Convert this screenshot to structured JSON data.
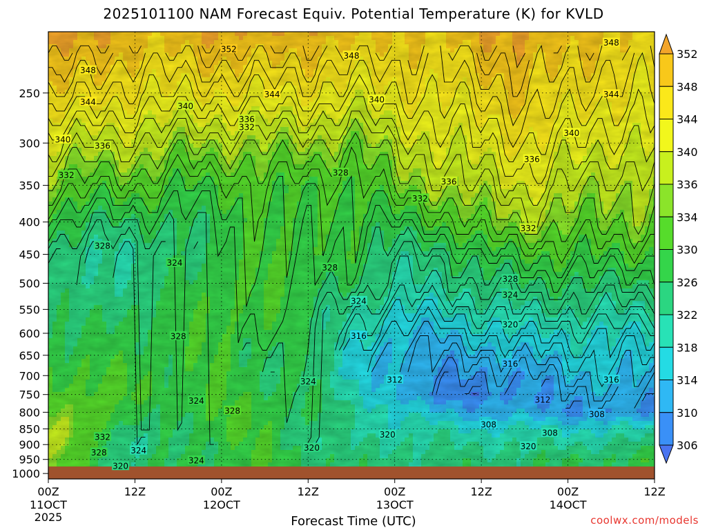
{
  "chart_data": {
    "type": "heatmap",
    "title": "2025101100 NAM Forecast Equiv. Potential Temperature (K) for KVLD",
    "xlabel": "Forecast Time (UTC)",
    "ylabel": "",
    "x_ticks": [
      {
        "hour": 0,
        "label": "00Z",
        "sub": "11OCT",
        "sub2": "2025"
      },
      {
        "hour": 12,
        "label": "12Z",
        "sub": "",
        "sub2": ""
      },
      {
        "hour": 24,
        "label": "00Z",
        "sub": "12OCT",
        "sub2": ""
      },
      {
        "hour": 36,
        "label": "12Z",
        "sub": "",
        "sub2": ""
      },
      {
        "hour": 48,
        "label": "00Z",
        "sub": "13OCT",
        "sub2": ""
      },
      {
        "hour": 60,
        "label": "12Z",
        "sub": "",
        "sub2": ""
      },
      {
        "hour": 72,
        "label": "00Z",
        "sub": "14OCT",
        "sub2": ""
      },
      {
        "hour": 84,
        "label": "12Z",
        "sub": "",
        "sub2": ""
      }
    ],
    "x_range": [
      0,
      84
    ],
    "y_ticks": [
      250,
      300,
      350,
      400,
      450,
      500,
      550,
      600,
      650,
      700,
      750,
      800,
      850,
      900,
      950,
      1000
    ],
    "y_range": [
      200,
      1020
    ],
    "y_scale": "log",
    "grid": true,
    "colorbar": {
      "labels": [
        352,
        348,
        344,
        340,
        336,
        334,
        330,
        326,
        322,
        318,
        314,
        310,
        306
      ],
      "colors": [
        "#f3a52a",
        "#f8c81a",
        "#fbe81a",
        "#f2f71c",
        "#c8f01e",
        "#8be42a",
        "#56dc2b",
        "#34d54a",
        "#2bd681",
        "#28e2b6",
        "#24dbe4",
        "#2fb8f4",
        "#3a90f7",
        "#4a74f0"
      ]
    },
    "surface_color": "#a0522d",
    "profiles": [
      {
        "hour": 0,
        "theta": [
          356,
          348,
          340,
          334,
          328,
          324,
          324,
          326,
          326,
          328,
          330,
          332,
          334,
          336,
          336,
          334
        ]
      },
      {
        "hour": 6,
        "theta": [
          352,
          346,
          338,
          332,
          326,
          322,
          322,
          324,
          326,
          328,
          330,
          332,
          334,
          334,
          332,
          328
        ]
      },
      {
        "hour": 12,
        "theta": [
          350,
          344,
          338,
          332,
          326,
          322,
          324,
          326,
          328,
          328,
          330,
          330,
          326,
          322,
          320,
          324
        ]
      },
      {
        "hour": 18,
        "theta": [
          350,
          344,
          336,
          330,
          326,
          324,
          326,
          328,
          328,
          328,
          328,
          328,
          328,
          326,
          326,
          326
        ]
      },
      {
        "hour": 24,
        "theta": [
          352,
          344,
          336,
          330,
          328,
          328,
          330,
          330,
          330,
          330,
          330,
          330,
          330,
          330,
          328,
          328
        ]
      },
      {
        "hour": 30,
        "theta": [
          352,
          344,
          336,
          332,
          330,
          330,
          330,
          330,
          328,
          326,
          326,
          328,
          330,
          330,
          330,
          330
        ]
      },
      {
        "hour": 36,
        "theta": [
          350,
          344,
          336,
          330,
          330,
          330,
          328,
          326,
          326,
          326,
          326,
          326,
          326,
          324,
          324,
          326
        ]
      },
      {
        "hour": 42,
        "theta": [
          350,
          342,
          334,
          330,
          328,
          328,
          326,
          322,
          320,
          318,
          318,
          320,
          322,
          322,
          322,
          324
        ]
      },
      {
        "hour": 48,
        "theta": [
          348,
          344,
          338,
          334,
          328,
          324,
          322,
          318,
          314,
          312,
          312,
          314,
          318,
          320,
          322,
          324
        ]
      },
      {
        "hour": 54,
        "theta": [
          348,
          344,
          340,
          336,
          330,
          324,
          322,
          318,
          314,
          312,
          310,
          308,
          314,
          320,
          322,
          324
        ]
      },
      {
        "hour": 60,
        "theta": [
          352,
          346,
          342,
          338,
          334,
          328,
          324,
          320,
          316,
          312,
          310,
          308,
          312,
          318,
          322,
          324
        ]
      },
      {
        "hour": 66,
        "theta": [
          352,
          348,
          344,
          340,
          336,
          330,
          326,
          322,
          318,
          314,
          310,
          310,
          312,
          318,
          322,
          324
        ]
      },
      {
        "hour": 72,
        "theta": [
          350,
          346,
          342,
          338,
          334,
          330,
          326,
          322,
          318,
          316,
          314,
          312,
          310,
          318,
          322,
          326
        ]
      },
      {
        "hour": 78,
        "theta": [
          348,
          344,
          340,
          336,
          334,
          330,
          326,
          322,
          318,
          316,
          314,
          312,
          310,
          318,
          322,
          326
        ]
      },
      {
        "hour": 84,
        "theta": [
          348,
          344,
          340,
          336,
          334,
          330,
          326,
          322,
          318,
          316,
          314,
          312,
          310,
          320,
          324,
          328
        ]
      }
    ],
    "profile_levels": [
      200,
      250,
      300,
      350,
      400,
      450,
      500,
      550,
      600,
      650,
      700,
      750,
      800,
      850,
      900,
      950
    ],
    "contour_labels": [
      {
        "hour": 25.0,
        "p": 213,
        "text": "352"
      },
      {
        "hour": 42.0,
        "p": 218,
        "text": "348"
      },
      {
        "hour": 5.5,
        "p": 230,
        "text": "348"
      },
      {
        "hour": 78.0,
        "p": 208,
        "text": "348"
      },
      {
        "hour": 5.5,
        "p": 258,
        "text": "344"
      },
      {
        "hour": 31.0,
        "p": 251,
        "text": "344"
      },
      {
        "hour": 78.0,
        "p": 251,
        "text": "344"
      },
      {
        "hour": 19.0,
        "p": 262,
        "text": "340"
      },
      {
        "hour": 45.5,
        "p": 256,
        "text": "340"
      },
      {
        "hour": 2.0,
        "p": 296,
        "text": "340"
      },
      {
        "hour": 72.5,
        "p": 289,
        "text": "340"
      },
      {
        "hour": 27.5,
        "p": 275,
        "text": "336"
      },
      {
        "hour": 7.5,
        "p": 303,
        "text": "336"
      },
      {
        "hour": 67.0,
        "p": 318,
        "text": "336"
      },
      {
        "hour": 27.5,
        "p": 283,
        "text": "332"
      },
      {
        "hour": 2.5,
        "p": 337,
        "text": "332"
      },
      {
        "hour": 51.5,
        "p": 367,
        "text": "332"
      },
      {
        "hour": 66.5,
        "p": 409,
        "text": "332"
      },
      {
        "hour": 55.5,
        "p": 345,
        "text": "336"
      },
      {
        "hour": 40.5,
        "p": 334,
        "text": "328"
      },
      {
        "hour": 7.5,
        "p": 436,
        "text": "328"
      },
      {
        "hour": 17.5,
        "p": 464,
        "text": "324"
      },
      {
        "hour": 39.0,
        "p": 472,
        "text": "328"
      },
      {
        "hour": 64.0,
        "p": 492,
        "text": "328"
      },
      {
        "hour": 64.0,
        "p": 521,
        "text": "324"
      },
      {
        "hour": 43.0,
        "p": 533,
        "text": "324"
      },
      {
        "hour": 18.0,
        "p": 606,
        "text": "328"
      },
      {
        "hour": 64.0,
        "p": 581,
        "text": "320"
      },
      {
        "hour": 43.0,
        "p": 605,
        "text": "316"
      },
      {
        "hour": 64.0,
        "p": 670,
        "text": "316"
      },
      {
        "hour": 48.0,
        "p": 710,
        "text": "312"
      },
      {
        "hour": 78.0,
        "p": 710,
        "text": "316"
      },
      {
        "hour": 36.0,
        "p": 715,
        "text": "324"
      },
      {
        "hour": 20.5,
        "p": 767,
        "text": "324"
      },
      {
        "hour": 25.5,
        "p": 795,
        "text": "328"
      },
      {
        "hour": 68.5,
        "p": 764,
        "text": "312"
      },
      {
        "hour": 76.0,
        "p": 805,
        "text": "308"
      },
      {
        "hour": 61.0,
        "p": 836,
        "text": "308"
      },
      {
        "hour": 69.5,
        "p": 862,
        "text": "308"
      },
      {
        "hour": 47.0,
        "p": 867,
        "text": "320"
      },
      {
        "hour": 36.5,
        "p": 910,
        "text": "320"
      },
      {
        "hour": 66.5,
        "p": 905,
        "text": "320"
      },
      {
        "hour": 7.5,
        "p": 875,
        "text": "332"
      },
      {
        "hour": 7.0,
        "p": 926,
        "text": "328"
      },
      {
        "hour": 12.5,
        "p": 919,
        "text": "324"
      },
      {
        "hour": 20.5,
        "p": 953,
        "text": "324"
      },
      {
        "hour": 10.0,
        "p": 973,
        "text": "320"
      }
    ]
  },
  "footer": {
    "credit": "coolwx.com/models"
  }
}
